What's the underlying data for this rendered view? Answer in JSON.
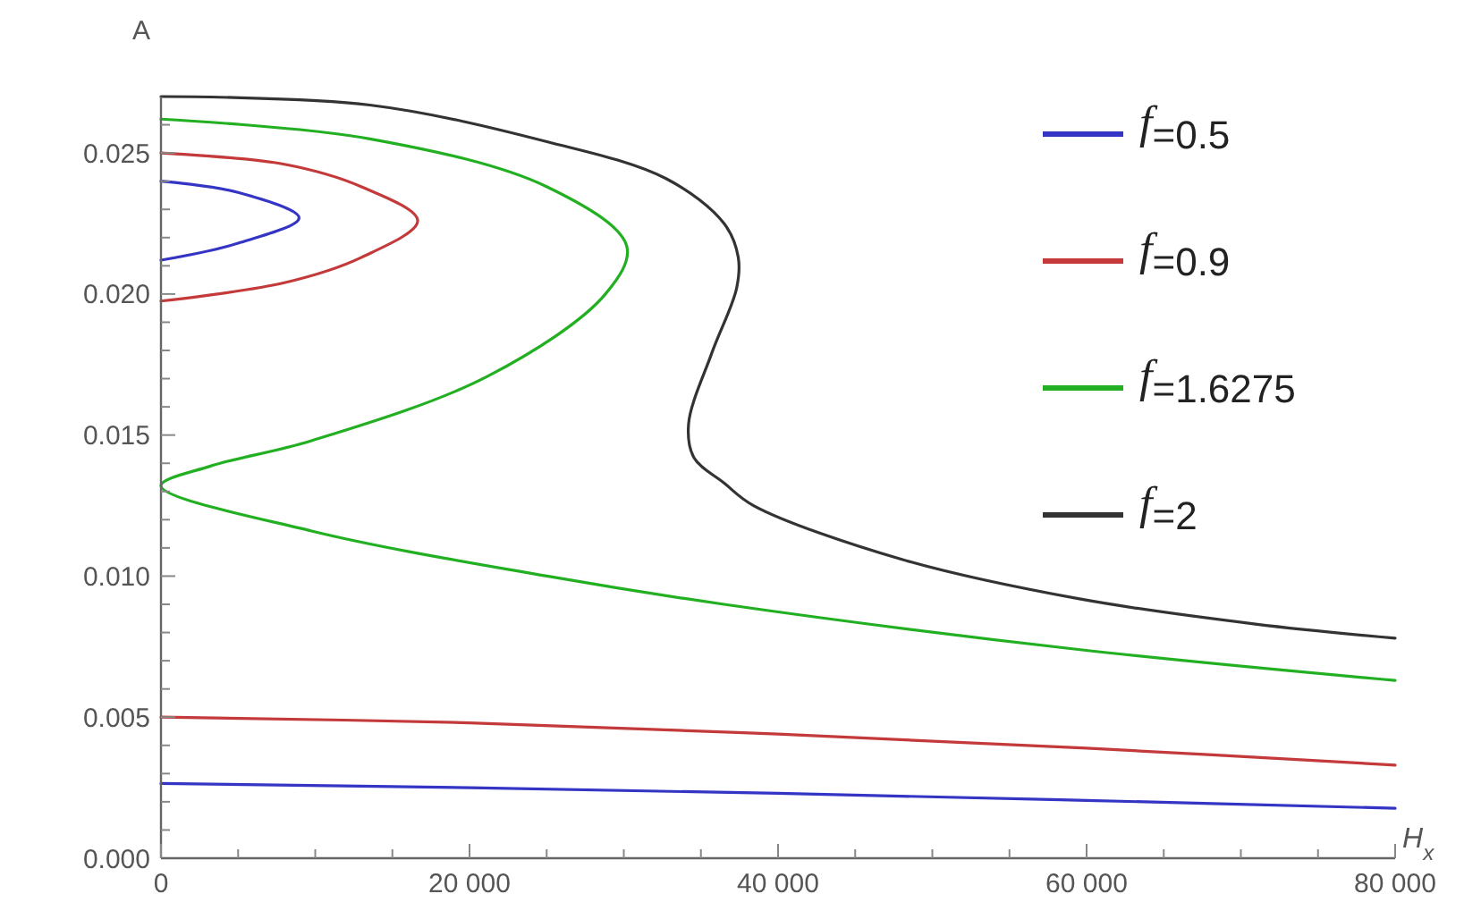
{
  "chart_data": {
    "type": "line",
    "xlabel": "H$_{x}$",
    "ylabel": "A",
    "xlim": [
      0,
      80000
    ],
    "ylim": [
      0,
      0.027
    ],
    "xticks": [
      {
        "value": 0,
        "label": "0"
      },
      {
        "value": 5000,
        "label": null
      },
      {
        "value": 10000,
        "label": null
      },
      {
        "value": 15000,
        "label": null
      },
      {
        "value": 20000,
        "label": "20 000"
      },
      {
        "value": 25000,
        "label": null
      },
      {
        "value": 30000,
        "label": null
      },
      {
        "value": 35000,
        "label": null
      },
      {
        "value": 40000,
        "label": "40 000"
      },
      {
        "value": 45000,
        "label": null
      },
      {
        "value": 50000,
        "label": null
      },
      {
        "value": 55000,
        "label": null
      },
      {
        "value": 60000,
        "label": "60 000"
      },
      {
        "value": 65000,
        "label": null
      },
      {
        "value": 70000,
        "label": null
      },
      {
        "value": 75000,
        "label": null
      },
      {
        "value": 80000,
        "label": "80 000"
      }
    ],
    "yticks": [
      {
        "value": 0,
        "label": "0.000"
      },
      {
        "value": 0.001,
        "label": null
      },
      {
        "value": 0.002,
        "label": null
      },
      {
        "value": 0.003,
        "label": null
      },
      {
        "value": 0.004,
        "label": null
      },
      {
        "value": 0.005,
        "label": "0.005"
      },
      {
        "value": 0.006,
        "label": null
      },
      {
        "value": 0.007,
        "label": null
      },
      {
        "value": 0.008,
        "label": null
      },
      {
        "value": 0.009,
        "label": null
      },
      {
        "value": 0.01,
        "label": "0.010"
      },
      {
        "value": 0.011,
        "label": null
      },
      {
        "value": 0.012,
        "label": null
      },
      {
        "value": 0.013,
        "label": null
      },
      {
        "value": 0.014,
        "label": null
      },
      {
        "value": 0.015,
        "label": "0.015"
      },
      {
        "value": 0.016,
        "label": null
      },
      {
        "value": 0.017,
        "label": null
      },
      {
        "value": 0.018,
        "label": null
      },
      {
        "value": 0.019,
        "label": null
      },
      {
        "value": 0.02,
        "label": "0.020"
      },
      {
        "value": 0.021,
        "label": null
      },
      {
        "value": 0.022,
        "label": null
      },
      {
        "value": 0.023,
        "label": null
      },
      {
        "value": 0.024,
        "label": null
      },
      {
        "value": 0.025,
        "label": "0.025"
      },
      {
        "value": 0.026,
        "label": null
      }
    ],
    "grid": false,
    "legend": "top right",
    "line_style": "solid",
    "series": [
      {
        "name": "f=0.5",
        "color": "#3535c5",
        "x": [
          0,
          5000,
          8950,
          5000,
          0,
          null,
          0,
          20000,
          40000,
          60000,
          80000
        ],
        "values": [
          0.024,
          0.0236,
          0.0227,
          0.0218,
          0.0212,
          null,
          0.00265,
          0.0025,
          0.0023,
          0.00205,
          0.00177
        ]
      },
      {
        "name": "f=0.9",
        "color": "#c43a3a",
        "x": [
          0,
          8000,
          13000,
          16640,
          13000,
          8000,
          0,
          null,
          0,
          20000,
          40000,
          60000,
          80000
        ],
        "values": [
          0.025,
          0.0246,
          0.0238,
          0.0226,
          0.0213,
          0.0204,
          0.01975,
          null,
          0.005,
          0.0048,
          0.0044,
          0.0039,
          0.0033
        ]
      },
      {
        "name": "f=1.6275",
        "color": "#22b022",
        "x": [
          0,
          13540,
          25020,
          30190,
          28810,
          21230,
          9760,
          3210,
          0,
          9760,
          25020,
          36500,
          59460,
          80000
        ],
        "values": [
          0.0262,
          0.0255,
          0.0238,
          0.0217,
          0.02,
          0.0171,
          0.0148,
          0.0139,
          0.0132,
          0.0116,
          0.01,
          0.009,
          0.0074,
          0.0063
        ]
      },
      {
        "name": "f=2",
        "color": "#333333",
        "x": [
          0,
          13540,
          25020,
          32710,
          36500,
          37420,
          37310,
          35700,
          34200,
          34550,
          36500,
          38410,
          47980,
          59460,
          70940,
          80000
        ],
        "values": [
          0.027,
          0.0267,
          0.0254,
          0.0241,
          0.0225,
          0.0213,
          0.0202,
          0.0179,
          0.0154,
          0.0142,
          0.0133,
          0.0125,
          0.0106,
          0.0092,
          0.0083,
          0.0078
        ]
      }
    ]
  }
}
